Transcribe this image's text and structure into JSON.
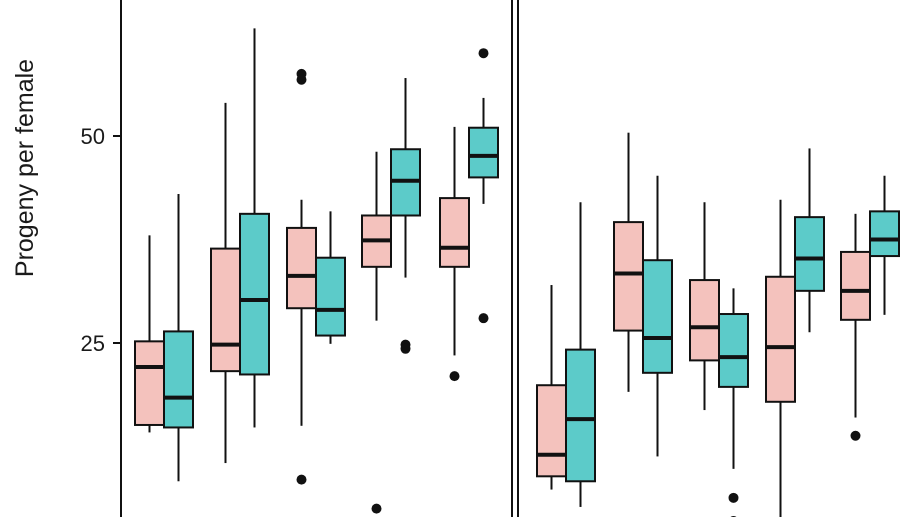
{
  "chart_data": {
    "type": "boxplot",
    "ylabel": "Progeny per female",
    "yticks": [
      25,
      50
    ],
    "ylim": [
      4.5,
      66.5
    ],
    "colors": {
      "group_a": "#f4c2bd",
      "group_b": "#5ccbc9",
      "outline": "#111111"
    },
    "panels": [
      {
        "groups": [
          {
            "series": [
              {
                "q1": 15.1,
                "median": 22.1,
                "q3": 25.2,
                "whisker_low": 14.2,
                "whisker_high": 38.0,
                "outliers": []
              },
              {
                "q1": 14.8,
                "median": 18.4,
                "q3": 26.4,
                "whisker_low": 8.3,
                "whisker_high": 43.0,
                "outliers": []
              }
            ]
          },
          {
            "series": [
              {
                "q1": 21.6,
                "median": 24.8,
                "q3": 36.4,
                "whisker_low": 10.5,
                "whisker_high": 54.0,
                "outliers": []
              },
              {
                "q1": 21.2,
                "median": 30.2,
                "q3": 40.6,
                "whisker_low": 14.8,
                "whisker_high": 63.0,
                "outliers": []
              }
            ]
          },
          {
            "series": [
              {
                "q1": 29.2,
                "median": 33.1,
                "q3": 38.9,
                "whisker_low": 15.0,
                "whisker_high": 42.3,
                "outliers": [
                  57.5,
                  56.8,
                  8.5
                ]
              },
              {
                "q1": 25.9,
                "median": 29.0,
                "q3": 35.3,
                "whisker_low": 24.9,
                "whisker_high": 40.9,
                "outliers": []
              }
            ]
          },
          {
            "series": [
              {
                "q1": 34.2,
                "median": 37.4,
                "q3": 40.4,
                "whisker_low": 27.7,
                "whisker_high": 48.1,
                "outliers": [
                  5.0
                ]
              },
              {
                "q1": 40.4,
                "median": 44.6,
                "q3": 48.4,
                "whisker_low": 32.9,
                "whisker_high": 57.0,
                "outliers": [
                  24.8,
                  24.3
                ]
              }
            ]
          },
          {
            "series": [
              {
                "q1": 34.2,
                "median": 36.5,
                "q3": 42.5,
                "whisker_low": 23.5,
                "whisker_high": 51.1,
                "outliers": [
                  21.0
                ]
              },
              {
                "q1": 45.0,
                "median": 47.6,
                "q3": 51.0,
                "whisker_low": 41.8,
                "whisker_high": 54.6,
                "outliers": [
                  60.0,
                  28.0
                ]
              }
            ]
          }
        ]
      },
      {
        "groups": [
          {
            "series": [
              {
                "q1": 8.9,
                "median": 11.5,
                "q3": 19.9,
                "whisker_low": 7.3,
                "whisker_high": 32.0,
                "outliers": []
              },
              {
                "q1": 8.3,
                "median": 15.8,
                "q3": 24.2,
                "whisker_low": 5.2,
                "whisker_high": 42.0,
                "outliers": []
              }
            ]
          },
          {
            "series": [
              {
                "q1": 26.5,
                "median": 33.4,
                "q3": 39.6,
                "whisker_low": 19.1,
                "whisker_high": 50.4,
                "outliers": []
              },
              {
                "q1": 21.4,
                "median": 25.6,
                "q3": 35.0,
                "whisker_low": 11.3,
                "whisker_high": 45.2,
                "outliers": []
              }
            ]
          },
          {
            "series": [
              {
                "q1": 22.9,
                "median": 26.9,
                "q3": 32.6,
                "whisker_low": 16.9,
                "whisker_high": 42.0,
                "outliers": []
              },
              {
                "q1": 19.7,
                "median": 23.3,
                "q3": 28.5,
                "whisker_low": 9.8,
                "whisker_high": 31.6,
                "outliers": [
                  6.3,
                  3.5
                ]
              }
            ]
          },
          {
            "series": [
              {
                "q1": 17.9,
                "median": 24.5,
                "q3": 33.0,
                "whisker_low": 3.0,
                "whisker_high": 42.3,
                "outliers": []
              },
              {
                "q1": 31.3,
                "median": 35.2,
                "q3": 40.2,
                "whisker_low": 26.3,
                "whisker_high": 48.5,
                "outliers": []
              }
            ]
          },
          {
            "series": [
              {
                "q1": 27.8,
                "median": 31.3,
                "q3": 36.0,
                "whisker_low": 16.0,
                "whisker_high": 40.6,
                "outliers": [
                  13.8
                ]
              },
              {
                "q1": 35.5,
                "median": 37.5,
                "q3": 40.9,
                "whisker_low": 28.4,
                "whisker_high": 45.2,
                "outliers": []
              }
            ]
          }
        ]
      }
    ]
  }
}
